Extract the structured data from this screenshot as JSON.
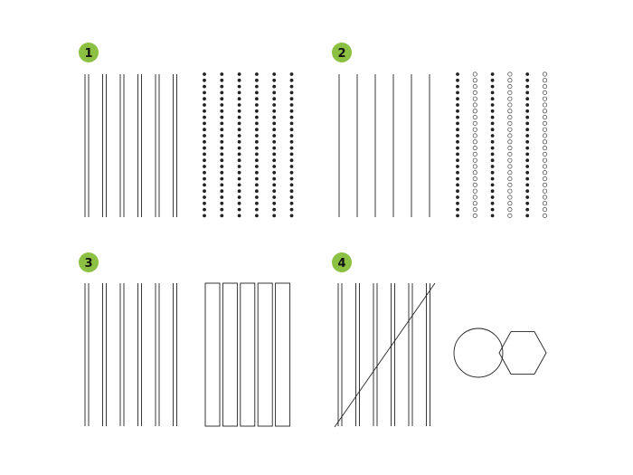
{
  "colors": {
    "badge": "#8cc043",
    "line": "#222222",
    "background": "#ffffff"
  },
  "panels": [
    {
      "number": "1",
      "left": "paired-vertical-lines",
      "right": "filled-dot-columns"
    },
    {
      "number": "2",
      "left": "single-vertical-lines",
      "right": "alternating-filled-and-hollow-dot-columns"
    },
    {
      "number": "3",
      "left": "paired-vertical-lines",
      "right": "tall-rectangles"
    },
    {
      "number": "4",
      "left": "paired-vertical-lines-crossed-by-diagonal",
      "right": "overlapping-circle-and-hexagon"
    }
  ]
}
